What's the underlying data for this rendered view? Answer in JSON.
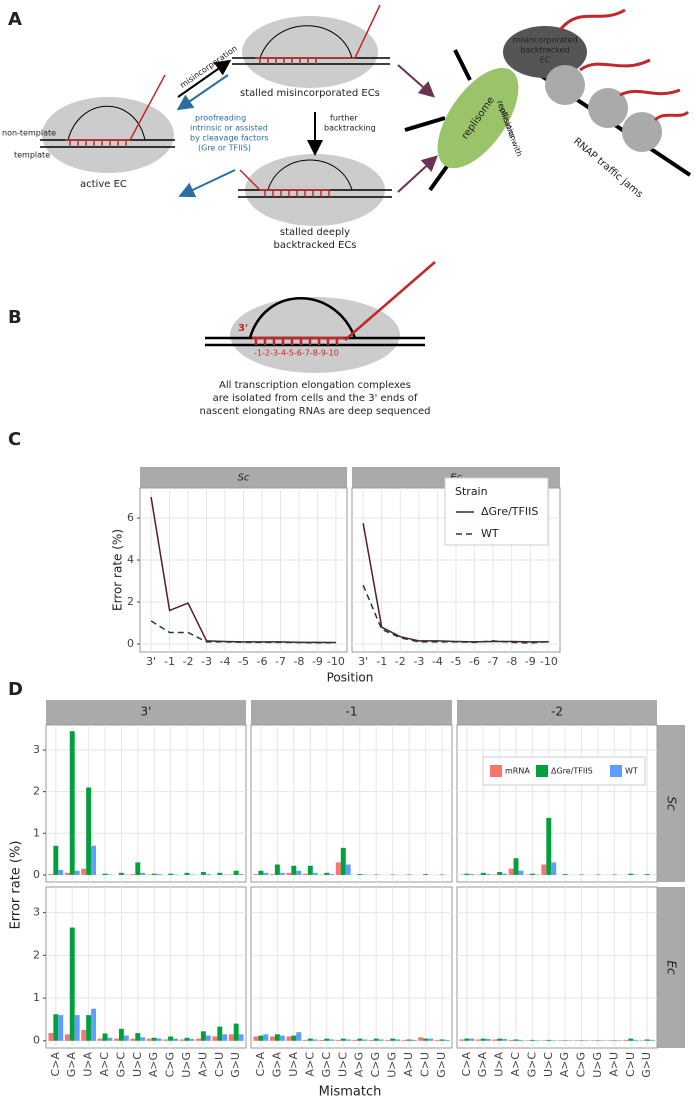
{
  "figure": {
    "a": {
      "label": "A",
      "non_template": "non-template",
      "template": "template",
      "active": "active EC",
      "misincorporation": "misincorporation",
      "proofreading": [
        "proofreading",
        "intrinsic or assisted",
        "by cleavage factors",
        "(Gre or TFIIS)"
      ],
      "stalled_misincorporated": "stalled misincorporated ECs",
      "further": [
        "further",
        "backtracking"
      ],
      "stalled_deep": [
        "stalled deeply",
        "backtracked ECs"
      ],
      "replisome": "replisome",
      "collisions": [
        "collisions with",
        "replication"
      ],
      "backtracked_ec": [
        "misincorporated",
        "backtracked",
        "EC"
      ],
      "traffic": "RNAP traffic jams"
    },
    "b": {
      "label": "B",
      "three_prime": "3'",
      "positions": "-1-2-3-4-5-6-7-8-9-10",
      "caption": [
        "All transcription elongation complexes",
        "are isolated from cells and the 3' ends of",
        "nascent elongating RNAs are deep sequenced"
      ]
    }
  },
  "chart_data": [
    {
      "type": "line",
      "label": "C",
      "facets": [
        "Sc",
        "Ec"
      ],
      "categories": [
        "3'",
        "-1",
        "-2",
        "-3",
        "-4",
        "-5",
        "-6",
        "-7",
        "-8",
        "-9",
        "-10"
      ],
      "series": [
        {
          "name": "ΔGre/TFIIS",
          "color": "#5a1e1e",
          "dash": false,
          "values": [
            [
              7.0,
              1.6,
              1.95,
              0.15,
              0.12,
              0.1,
              0.1,
              0.1,
              0.08,
              0.08,
              0.07
            ],
            [
              5.75,
              0.8,
              0.35,
              0.15,
              0.15,
              0.12,
              0.1,
              0.12,
              0.12,
              0.1,
              0.1
            ]
          ]
        },
        {
          "name": "WT",
          "color": "#16423c",
          "dash": true,
          "values": [
            [
              1.1,
              0.55,
              0.55,
              0.1,
              0.1,
              0.08,
              0.08,
              0.08,
              0.07,
              0.06,
              0.06
            ],
            [
              2.8,
              0.7,
              0.3,
              0.1,
              0.1,
              0.1,
              0.08,
              0.15,
              0.08,
              0.05,
              0.12
            ]
          ]
        }
      ],
      "ylim": [
        -0.38,
        7.43
      ],
      "yticks": [
        0,
        2,
        4,
        6
      ],
      "xlabel": "Position",
      "ylabel": "Error rate (%)",
      "legend_title": "Strain",
      "grid": true
    },
    {
      "type": "bar",
      "label": "D",
      "columns": [
        "3'",
        "-1",
        "-2"
      ],
      "rows": [
        "Sc",
        "Ec"
      ],
      "categories": [
        "C>A",
        "G>A",
        "U>A",
        "A>C",
        "G>C",
        "U>C",
        "A>G",
        "C>G",
        "U>G",
        "A>U",
        "C>U",
        "G>U"
      ],
      "series": [
        {
          "name": "mRNA",
          "color": "#f8766d",
          "values": [
            [
              [
                0.02,
                0.05,
                0.15,
                0,
                0,
                0.02,
                0.01,
                0,
                0,
                0,
                0,
                0.01
              ],
              [
                0.02,
                0.02,
                0.05,
                0.03,
                0.01,
                0.3,
                0,
                0,
                0,
                0,
                0,
                0
              ],
              [
                0.01,
                0.01,
                0.01,
                0.15,
                0.01,
                0.25,
                0,
                0,
                0,
                0,
                0,
                0
              ]
            ],
            [
              [
                0.18,
                0.15,
                0.25,
                0.05,
                0.05,
                0.05,
                0.05,
                0.03,
                0.03,
                0.05,
                0.1,
                0.15
              ],
              [
                0.1,
                0.1,
                0.1,
                0.02,
                0.02,
                0.02,
                0.02,
                0.02,
                0.02,
                0.02,
                0.08,
                0.02
              ],
              [
                0.03,
                0.03,
                0.03,
                0.02,
                0.01,
                0.01,
                0.01,
                0.01,
                0.01,
                0.01,
                0.02,
                0.01
              ]
            ]
          ]
        },
        {
          "name": "ΔGre/TFIIS",
          "color": "#00a03c",
          "values": [
            [
              [
                0.7,
                3.45,
                2.1,
                0.03,
                0.05,
                0.3,
                0.03,
                0.03,
                0.05,
                0.07,
                0.05,
                0.1
              ],
              [
                0.1,
                0.25,
                0.22,
                0.22,
                0.05,
                0.65,
                0.02,
                0.01,
                0.01,
                0.01,
                0.02,
                0.01
              ],
              [
                0.03,
                0.05,
                0.07,
                0.4,
                0.03,
                1.37,
                0.02,
                0.01,
                0.01,
                0.01,
                0.03,
                0.02
              ]
            ],
            [
              [
                0.62,
                2.65,
                0.6,
                0.17,
                0.28,
                0.18,
                0.07,
                0.1,
                0.07,
                0.22,
                0.33,
                0.4
              ],
              [
                0.12,
                0.15,
                0.12,
                0.05,
                0.05,
                0.05,
                0.05,
                0.05,
                0.05,
                0.03,
                0.05,
                0.03
              ],
              [
                0.05,
                0.05,
                0.05,
                0.03,
                0.02,
                0.02,
                0.01,
                0.01,
                0.01,
                0.01,
                0.05,
                0.03
              ]
            ]
          ]
        },
        {
          "name": "WT",
          "color": "#619cff",
          "values": [
            [
              [
                0.12,
                0.1,
                0.7,
                0.01,
                0.01,
                0.05,
                0.02,
                0.01,
                0.01,
                0.02,
                0.01,
                0.02
              ],
              [
                0.05,
                0.05,
                0.1,
                0.05,
                0.02,
                0.25,
                0.01,
                0,
                0,
                0,
                0,
                0
              ],
              [
                0.02,
                0.02,
                0.03,
                0.1,
                0.01,
                0.3,
                0,
                0,
                0,
                0,
                0.01,
                0
              ]
            ],
            [
              [
                0.6,
                0.6,
                0.75,
                0.07,
                0.12,
                0.08,
                0.05,
                0.05,
                0.04,
                0.12,
                0.15,
                0.15
              ],
              [
                0.15,
                0.12,
                0.2,
                0.03,
                0.03,
                0.03,
                0.03,
                0.03,
                0.03,
                0.02,
                0.05,
                0.02
              ],
              [
                0.05,
                0.04,
                0.04,
                0.02,
                0.01,
                0.01,
                0.01,
                0.01,
                0.01,
                0.01,
                0.02,
                0.02
              ]
            ]
          ]
        }
      ],
      "ylim": [
        -0.17,
        3.6
      ],
      "yticks": [
        0,
        1,
        2,
        3
      ],
      "xlabel": "Mismatch",
      "ylabel": "Error rate (%)",
      "grid": true
    }
  ]
}
